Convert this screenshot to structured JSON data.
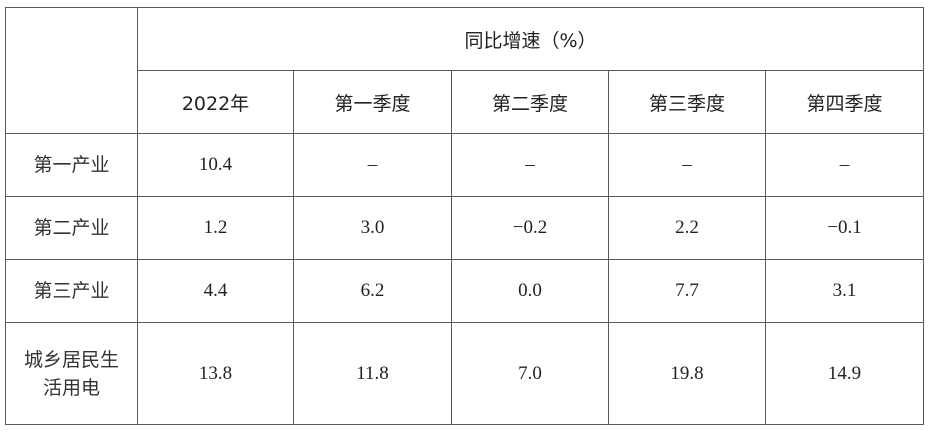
{
  "table": {
    "group_header": "同比增速（%）",
    "columns": [
      "2022年",
      "第一季度",
      "第二季度",
      "第三季度",
      "第四季度"
    ],
    "rows": [
      {
        "label": "第一产业",
        "values": [
          "10.4",
          "–",
          "–",
          "–",
          "–"
        ]
      },
      {
        "label": "第二产业",
        "values": [
          "1.2",
          "3.0",
          "−0.2",
          "2.2",
          "−0.1"
        ]
      },
      {
        "label": "第三产业",
        "values": [
          "4.4",
          "6.2",
          "0.0",
          "7.7",
          "3.1"
        ]
      },
      {
        "label": "城乡居民生活用电",
        "label_lines": [
          "城乡居民生",
          "活用电"
        ],
        "values": [
          "13.8",
          "11.8",
          "7.0",
          "19.8",
          "14.9"
        ]
      }
    ]
  }
}
